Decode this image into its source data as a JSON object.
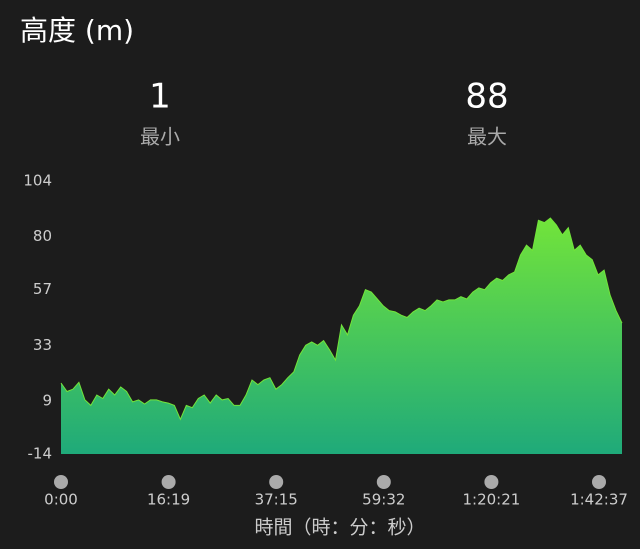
{
  "chart_data": {
    "type": "area",
    "title": "高度 (m)",
    "stats": [
      {
        "value": 1,
        "label": "最小"
      },
      {
        "value": 88,
        "label": "最大"
      }
    ],
    "values": [
      16.7,
      13,
      14,
      17,
      9.4,
      7,
      11.5,
      10,
      14,
      11.5,
      15,
      13,
      8.5,
      9.4,
      7.6,
      9.4,
      9.4,
      8.5,
      8,
      7,
      1,
      7,
      6,
      10,
      11.5,
      8,
      11.5,
      9.4,
      10,
      7,
      7,
      11.5,
      18,
      16,
      18,
      19,
      14,
      16,
      19,
      21.5,
      28.8,
      33,
      34.4,
      33,
      35,
      31,
      26.6,
      41.8,
      37.5,
      46,
      50,
      57,
      56,
      53,
      50,
      48,
      47.4,
      46,
      45,
      47.4,
      49,
      48,
      50,
      52.6,
      51.7,
      52.6,
      52.6,
      54,
      53,
      56,
      57.8,
      57,
      60,
      62,
      61,
      63.4,
      64.7,
      72,
      76.3,
      74,
      87,
      86,
      88,
      85,
      80.7,
      83.8,
      74,
      76.3,
      72,
      70,
      63.4,
      65.5,
      54.7,
      48,
      42.6
    ],
    "ylim": [
      -14,
      104
    ],
    "yticks": [
      -14,
      9,
      33,
      57,
      80,
      104
    ],
    "xtick_labels": [
      "0:00",
      "16:19",
      "37:15",
      "59:32",
      "1:20:21",
      "1:42:37"
    ],
    "xlabel": "時間（時：分：秒）",
    "colors": [
      "#72e43a",
      "#1faa7a"
    ]
  }
}
